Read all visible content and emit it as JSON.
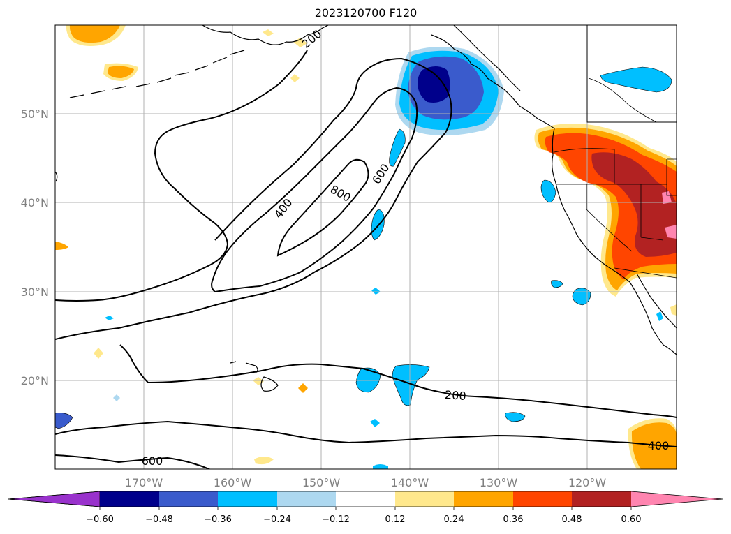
{
  "title": "2023120700 F120",
  "map": {
    "lat_ticks": [
      "50°N",
      "40°N",
      "30°N",
      "20°N"
    ],
    "lon_ticks": [
      "170°W",
      "160°W",
      "150°W",
      "140°W",
      "130°W",
      "120°W"
    ],
    "contour_labels": [
      "400",
      "600",
      "800",
      "200",
      "400",
      "600",
      "200"
    ]
  },
  "colorbar": {
    "ticks": [
      "−0.60",
      "−0.48",
      "−0.36",
      "−0.24",
      "−0.12",
      "0.12",
      "0.24",
      "0.36",
      "0.48",
      "0.60"
    ],
    "colors": [
      "#9932cc",
      "#00008b",
      "#3a5bcc",
      "#00bfff",
      "#add8f0",
      "#ffffff",
      "#ffe88c",
      "#ffa500",
      "#ff4500",
      "#b22222",
      "#ff85b0"
    ]
  }
}
